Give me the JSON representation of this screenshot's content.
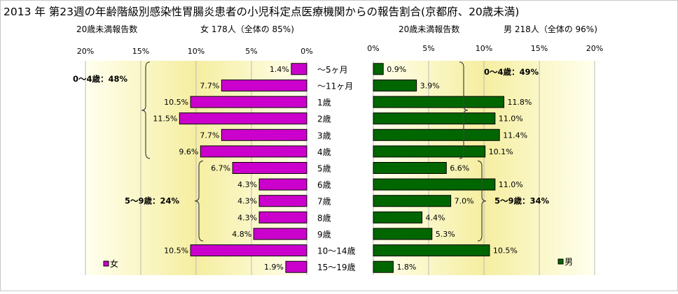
{
  "title": "2013 年 第23週の年齢階級別感染性胃腸炎患者の小児科定点医療機関からの報告割合(京都府、20歳未満)",
  "age_groups": [
    "～5ヶ月",
    "～11ヶ月",
    "1歳",
    "2歳",
    "3歳",
    "4歳",
    "5歳",
    "6歳",
    "7歳",
    "8歳",
    "9歳",
    "10～14歳",
    "15～19歳"
  ],
  "colors": {
    "female": "#cc00cc",
    "male": "#006600",
    "panel_light": "#ffffee",
    "panel_dark": "#f5eea0"
  },
  "chart_data": [
    {
      "type": "bar",
      "orientation": "horizontal",
      "direction": "reversed",
      "header_left": "20歳未満報告数",
      "header_right": "女 178人（全体の 85%)",
      "categories": [
        "～5ヶ月",
        "～11ヶ月",
        "1歳",
        "2歳",
        "3歳",
        "4歳",
        "5歳",
        "6歳",
        "7歳",
        "8歳",
        "9歳",
        "10～14歳",
        "15～19歳"
      ],
      "series": [
        {
          "name": "女",
          "values": [
            1.4,
            7.7,
            10.5,
            11.5,
            7.7,
            9.6,
            6.7,
            4.3,
            4.3,
            4.3,
            4.8,
            10.5,
            1.9
          ]
        }
      ],
      "data_labels": [
        "1.4%",
        "7.7%",
        "10.5%",
        "11.5%",
        "7.7%",
        "9.6%",
        "6.7%",
        "4.3%",
        "4.3%",
        "4.3%",
        "4.8%",
        "10.5%",
        "1.9%"
      ],
      "ticks": [
        "20%",
        "15%",
        "10%",
        "5%",
        "0%"
      ],
      "xlim": [
        0,
        20
      ],
      "legend": "bottom-left",
      "brackets": [
        {
          "label": "0～4歳：48%",
          "from": 0,
          "to": 5
        },
        {
          "label": "5～9歳：24%",
          "from": 6,
          "to": 10
        }
      ]
    },
    {
      "type": "bar",
      "orientation": "horizontal",
      "header_left": "20歳未満報告数",
      "header_right": "男 218人（全体の 96%)",
      "categories": [
        "～5ヶ月",
        "～11ヶ月",
        "1歳",
        "2歳",
        "3歳",
        "4歳",
        "5歳",
        "6歳",
        "7歳",
        "8歳",
        "9歳",
        "10～14歳",
        "15～19歳"
      ],
      "series": [
        {
          "name": "男",
          "values": [
            0.9,
            3.9,
            11.8,
            11.0,
            11.4,
            10.1,
            6.6,
            11.0,
            7.0,
            4.4,
            5.3,
            10.5,
            1.8
          ]
        }
      ],
      "data_labels": [
        "0.9%",
        "3.9%",
        "11.8%",
        "11.0%",
        "11.4%",
        "10.1%",
        "6.6%",
        "11.0%",
        "7.0%",
        "4.4%",
        "5.3%",
        "10.5%",
        "1.8%"
      ],
      "ticks": [
        "0%",
        "5%",
        "10%",
        "15%",
        "20%"
      ],
      "xlim": [
        0,
        20
      ],
      "legend": "bottom-right",
      "brackets": [
        {
          "label": "0～4歳：49%",
          "from": 0,
          "to": 5
        },
        {
          "label": "5～9歳：34%",
          "from": 6,
          "to": 10
        }
      ]
    }
  ]
}
